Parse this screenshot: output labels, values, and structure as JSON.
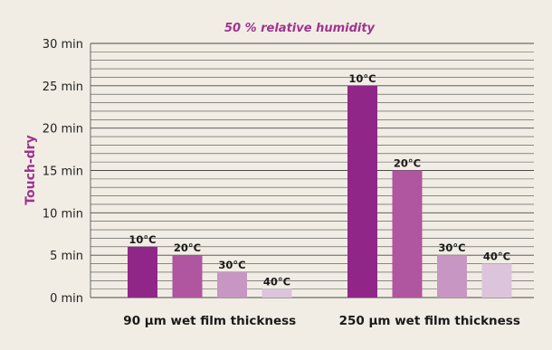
{
  "chart_data": {
    "type": "bar",
    "title": "50 % relative humidity",
    "ylabel": "Touch-dry",
    "xlabel": "",
    "ylim": [
      0,
      30
    ],
    "yticks": [
      0,
      5,
      10,
      15,
      20,
      25,
      30
    ],
    "ytick_labels": [
      "0 min",
      "5 min",
      "10 min",
      "15 min",
      "20 min",
      "25 min",
      "30 min"
    ],
    "minor_grid_step": 1,
    "grid": true,
    "categories": [
      "90 µm wet film thickness",
      "250 µm wet film thickness"
    ],
    "series": [
      {
        "name": "10°C",
        "values": [
          6,
          25
        ],
        "color": "#912689"
      },
      {
        "name": "20°C",
        "values": [
          5,
          15
        ],
        "color": "#b0559f"
      },
      {
        "name": "30°C",
        "values": [
          3,
          5
        ],
        "color": "#c896c2"
      },
      {
        "name": "40°C",
        "values": [
          1,
          4
        ],
        "color": "#dcc4dd"
      }
    ],
    "colors": {
      "background": "#f1ede4",
      "plot_background": "#f1ede4",
      "grid": "#4a4a4a",
      "accent": "#a0338f"
    }
  }
}
